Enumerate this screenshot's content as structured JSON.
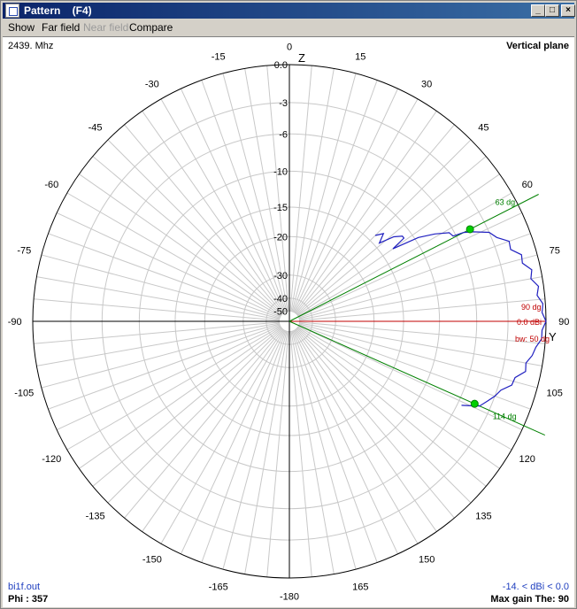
{
  "window": {
    "title": "Pattern    (F4)",
    "controls": [
      "_",
      "□",
      "×"
    ]
  },
  "menu": {
    "show": "Show",
    "farfield": "Far field",
    "nearfield": "Near field",
    "compare": "Compare"
  },
  "info": {
    "frequency": "2439. Mhz",
    "plane": "Vertical plane",
    "file": "bi1f.out",
    "phi": "Phi : 357",
    "range": "-14. < dBi < 0.0",
    "maxgain": "Max gain The: 90"
  },
  "polar": {
    "axis_z": "Z",
    "axis_y": "Y",
    "angle_labels": [
      {
        "a": 0,
        "t": "0"
      },
      {
        "a": 15,
        "t": "15"
      },
      {
        "a": 30,
        "t": "30"
      },
      {
        "a": 45,
        "t": "45"
      },
      {
        "a": 60,
        "t": "60"
      },
      {
        "a": 75,
        "t": "75"
      },
      {
        "a": 90,
        "t": "90"
      },
      {
        "a": 105,
        "t": "105"
      },
      {
        "a": 120,
        "t": "120"
      },
      {
        "a": 135,
        "t": "135"
      },
      {
        "a": 150,
        "t": "150"
      },
      {
        "a": 165,
        "t": "165"
      },
      {
        "a": 180,
        "t": "-180"
      },
      {
        "a": -165,
        "t": "-165"
      },
      {
        "a": -150,
        "t": "-150"
      },
      {
        "a": -135,
        "t": "-135"
      },
      {
        "a": -120,
        "t": "-120"
      },
      {
        "a": -105,
        "t": "-105"
      },
      {
        "a": -90,
        "t": "-90"
      },
      {
        "a": -75,
        "t": "-75"
      },
      {
        "a": -60,
        "t": "-60"
      },
      {
        "a": -45,
        "t": "-45"
      },
      {
        "a": -30,
        "t": "-30"
      },
      {
        "a": -15,
        "t": "-15"
      }
    ],
    "db_rings": [
      0,
      -3,
      -6,
      -10,
      -15,
      -20,
      -30,
      -40,
      -50
    ],
    "db_labels": [
      "0.0",
      "-3",
      "-6",
      "-10",
      "-15",
      "-20",
      "-30",
      "-40",
      "-50"
    ],
    "beam_marker1": {
      "angle": 63,
      "label": "63 dg"
    },
    "beam_marker2": {
      "angle": 114,
      "label": "114 dg"
    },
    "max_marker": {
      "angle": 90,
      "label": "90 dg",
      "gain_label": "0.0 dBi",
      "bw_label": "bw: 50 dg"
    },
    "pattern_points": [
      {
        "theta": 45,
        "db": -14
      },
      {
        "theta": 47,
        "db": -13
      },
      {
        "theta": 49,
        "db": -14.3
      },
      {
        "theta": 51,
        "db": -12.2
      },
      {
        "theta": 53,
        "db": -11.2
      },
      {
        "theta": 54,
        "db": -11.2
      },
      {
        "theta": 55,
        "db": -13.3
      },
      {
        "theta": 57,
        "db": -9.6
      },
      {
        "theta": 59,
        "db": -7.9
      },
      {
        "theta": 61,
        "db": -6.5
      },
      {
        "theta": 62.5,
        "db": -6.3
      },
      {
        "theta": 63,
        "db": -5.2
      },
      {
        "theta": 64,
        "db": -4.4
      },
      {
        "theta": 66,
        "db": -3.0
      },
      {
        "theta": 68,
        "db": -2.6
      },
      {
        "theta": 70,
        "db": -1.8
      },
      {
        "theta": 72,
        "db": -1.9
      },
      {
        "theta": 74,
        "db": -1.2
      },
      {
        "theta": 76,
        "db": -1.3
      },
      {
        "theta": 78,
        "db": -0.7
      },
      {
        "theta": 80,
        "db": -0.9
      },
      {
        "theta": 82,
        "db": -0.4
      },
      {
        "theta": 84,
        "db": -0.6
      },
      {
        "theta": 86,
        "db": -0.2
      },
      {
        "theta": 88,
        "db": -0.3
      },
      {
        "theta": 90,
        "db": 0
      },
      {
        "theta": 92,
        "db": -0.3
      },
      {
        "theta": 94,
        "db": -0.3
      },
      {
        "theta": 96,
        "db": -0.7
      },
      {
        "theta": 98,
        "db": -0.9
      },
      {
        "theta": 100,
        "db": -1.3
      },
      {
        "theta": 102,
        "db": -1.2
      },
      {
        "theta": 104,
        "db": -1.9
      },
      {
        "theta": 106,
        "db": -2.0
      },
      {
        "theta": 108,
        "db": -2.7
      },
      {
        "theta": 110,
        "db": -3.0
      },
      {
        "theta": 112,
        "db": -3.5
      },
      {
        "theta": 114,
        "db": -4.0
      },
      {
        "theta": 115,
        "db": -4.8
      },
      {
        "theta": 116,
        "db": -5.6
      }
    ],
    "colors": {
      "grid": "#c8c8c8",
      "axes": "#000000",
      "max_line": "#c00000",
      "beam_lines": "#008000",
      "beam_dots": "#00d000",
      "pattern": "#2020c0",
      "info_blue": "#1f3fbf"
    }
  }
}
